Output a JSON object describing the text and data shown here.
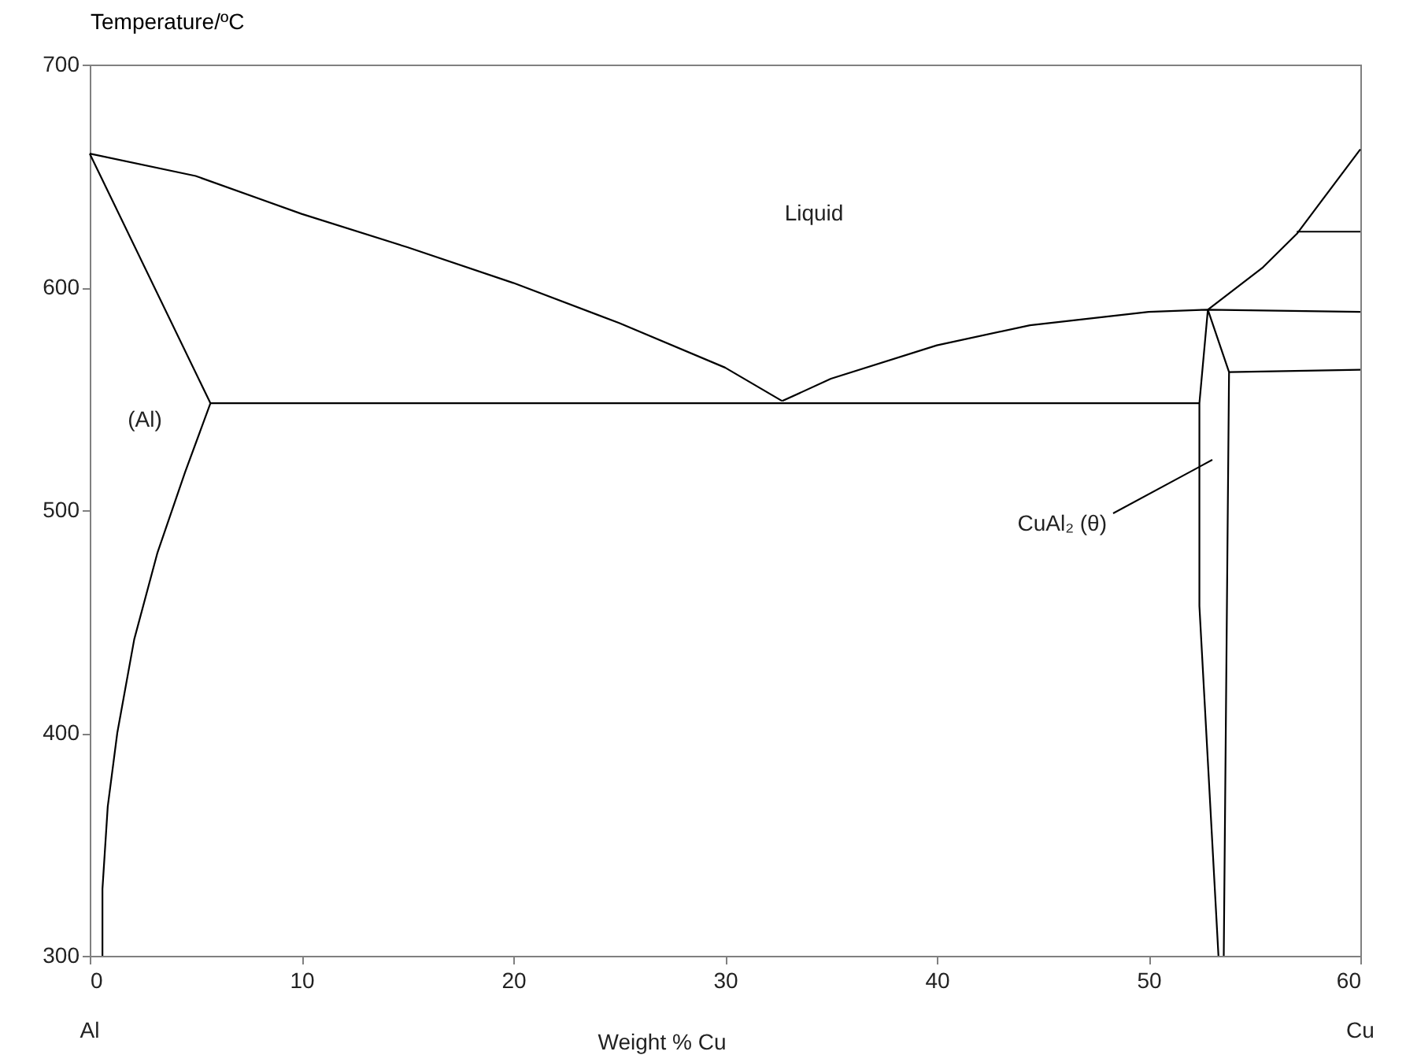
{
  "chart_data": {
    "type": "line",
    "xlabel": "Weight %  Cu",
    "ylabel": "Temperature/ºC",
    "xlim": [
      0,
      60
    ],
    "ylim": [
      300,
      700
    ],
    "xticks": [
      0,
      10,
      20,
      30,
      40,
      50,
      60
    ],
    "yticks": [
      300,
      400,
      500,
      600,
      700
    ],
    "series": [
      {
        "color": "#000000",
        "x": [
          0,
          5,
          10,
          15,
          20,
          25,
          30,
          32.7
        ],
        "values": [
          660,
          650,
          633,
          618,
          602,
          584,
          564,
          549
        ]
      },
      {
        "color": "#000000",
        "x": [
          32.7,
          35,
          40,
          44.4,
          50,
          52.8,
          60
        ],
        "values": [
          549,
          559,
          574,
          583,
          589,
          590,
          589
        ]
      },
      {
        "color": "#000000",
        "x": [
          52.8,
          55.4,
          57,
          60
        ],
        "values": [
          590,
          609,
          624,
          662
        ]
      },
      {
        "color": "#000000",
        "x": [
          0,
          5.7,
          4.5,
          3.2,
          2.1,
          1.3,
          0.85,
          0.6,
          0.6
        ],
        "values": [
          660,
          548,
          517,
          481,
          442,
          400,
          367,
          330,
          300
        ]
      },
      {
        "color": "#000000",
        "x": [
          5.7,
          52.4
        ],
        "values": [
          548,
          548
        ]
      },
      {
        "color": "#000000",
        "x": [
          52.8,
          52.4,
          52.4,
          53.3
        ],
        "values": [
          590,
          548,
          457,
          300
        ]
      },
      {
        "color": "#000000",
        "x": [
          52.8,
          53.8,
          53.55
        ],
        "values": [
          590,
          562,
          300
        ]
      },
      {
        "color": "#000000",
        "x": [
          53.8,
          60
        ],
        "values": [
          562,
          563
        ]
      },
      {
        "color": "#000000",
        "x": [
          57,
          60
        ],
        "values": [
          625,
          625
        ]
      }
    ],
    "annotations": [
      "Liquid",
      "(Al)",
      "CuAl₂ (θ)",
      "Al",
      "Cu"
    ]
  }
}
